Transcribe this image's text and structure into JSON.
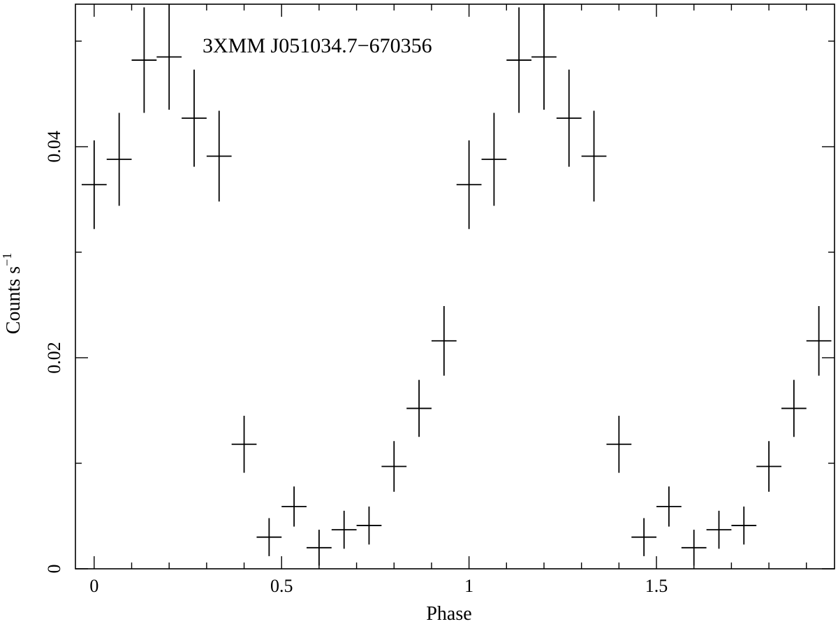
{
  "chart_data": {
    "type": "scatter",
    "title": "3XMM J051034.7−670356",
    "xlabel": "Phase",
    "ylabel": "Counts s",
    "ylabel_sup": "−1",
    "xlim": [
      -0.05,
      1.975
    ],
    "ylim": [
      0,
      0.0535
    ],
    "x_ticks": [
      0,
      0.5,
      1,
      1.5
    ],
    "x_tick_labels": [
      "0",
      "0.5",
      "1",
      "1.5"
    ],
    "y_ticks": [
      0,
      0.02,
      0.04
    ],
    "y_tick_labels": [
      "0",
      "0.02",
      "0.04"
    ],
    "grid": false,
    "x_bin_halfwidth": 0.0333,
    "series": [
      {
        "x": [
          0,
          0.0667,
          0.1333,
          0.2,
          0.2667,
          0.3333,
          0.4,
          0.4667,
          0.5333,
          0.6,
          0.6667,
          0.7333,
          0.8,
          0.8667,
          0.9333,
          1.0,
          1.0667,
          1.1333,
          1.2,
          1.2667,
          1.3333,
          1.4,
          1.4667,
          1.5333,
          1.6,
          1.6667,
          1.7333,
          1.8,
          1.8667,
          1.9333
        ],
        "y": [
          0.0364,
          0.0388,
          0.0482,
          0.0485,
          0.0427,
          0.0391,
          0.0118,
          0.003,
          0.0059,
          0.002,
          0.0037,
          0.0041,
          0.0097,
          0.0152,
          0.0216,
          0.0364,
          0.0388,
          0.0482,
          0.0485,
          0.0427,
          0.0391,
          0.0118,
          0.003,
          0.0059,
          0.002,
          0.0037,
          0.0041,
          0.0097,
          0.0152,
          0.0216
        ],
        "yerr": [
          0.0042,
          0.0044,
          0.005,
          0.005,
          0.0046,
          0.0043,
          0.0027,
          0.0018,
          0.0019,
          0.0017,
          0.0018,
          0.0018,
          0.0024,
          0.0027,
          0.0033,
          0.0042,
          0.0044,
          0.005,
          0.005,
          0.0046,
          0.0043,
          0.0027,
          0.0018,
          0.0019,
          0.0017,
          0.0018,
          0.0018,
          0.0024,
          0.0027,
          0.0033
        ]
      }
    ]
  }
}
